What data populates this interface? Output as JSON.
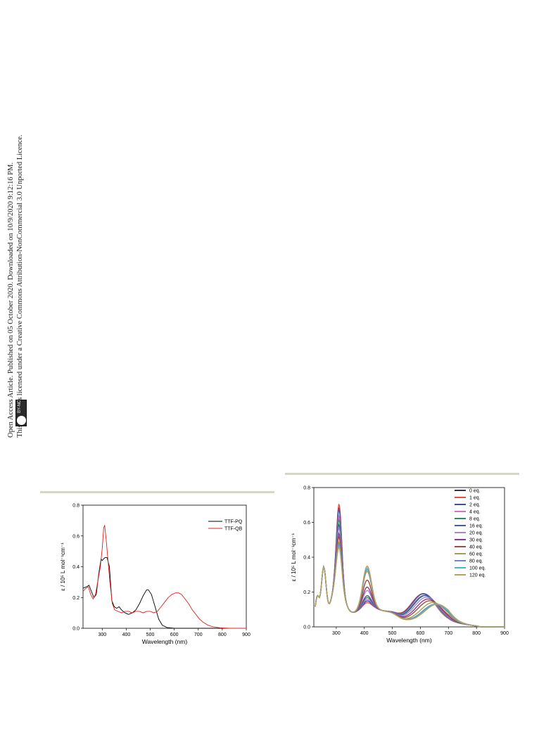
{
  "sidebar": {
    "line1": "Open Access Article. Published on 05 October 2020. Downloaded on 10/9/2020 9:12:16 PM.",
    "line2": "This article is licensed under a Creative Commons Attribution-NonCommercial 3.0 Unported Licence.",
    "badge_text": "BY-NC",
    "badge_icon": "cc-license-icon"
  },
  "colors": {
    "black": "#000000",
    "red": "#e02020",
    "rule": "#d6d6c8"
  },
  "chart_data": [
    {
      "type": "line",
      "xlabel": "Wavelength (nm)",
      "ylabel": "ε / 10⁵ L mol⁻¹cm⁻¹",
      "xlim": [
        220,
        900
      ],
      "ylim": [
        0.0,
        0.8
      ],
      "xticks": [
        300,
        400,
        500,
        600,
        700,
        800,
        900
      ],
      "yticks": [
        0.0,
        0.2,
        0.4,
        0.6,
        0.8
      ],
      "legend_position": "top-right",
      "series": [
        {
          "name": "TTF-PQ",
          "color": "#000000",
          "points": [
            [
              220,
              0.26
            ],
            [
              235,
              0.27
            ],
            [
              245,
              0.28
            ],
            [
              255,
              0.24
            ],
            [
              265,
              0.2
            ],
            [
              275,
              0.22
            ],
            [
              285,
              0.35
            ],
            [
              295,
              0.45
            ],
            [
              300,
              0.44
            ],
            [
              305,
              0.45
            ],
            [
              312,
              0.46
            ],
            [
              320,
              0.46
            ],
            [
              330,
              0.4
            ],
            [
              340,
              0.18
            ],
            [
              350,
              0.14
            ],
            [
              360,
              0.13
            ],
            [
              370,
              0.14
            ],
            [
              380,
              0.12
            ],
            [
              395,
              0.1
            ],
            [
              410,
              0.09
            ],
            [
              425,
              0.1
            ],
            [
              440,
              0.12
            ],
            [
              455,
              0.16
            ],
            [
              470,
              0.21
            ],
            [
              485,
              0.25
            ],
            [
              492,
              0.25
            ],
            [
              505,
              0.22
            ],
            [
              520,
              0.14
            ],
            [
              535,
              0.06
            ],
            [
              550,
              0.02
            ],
            [
              570,
              0.005
            ],
            [
              600,
              0.0
            ],
            [
              700,
              0.0
            ],
            [
              900,
              0.0
            ]
          ]
        },
        {
          "name": "TTF-QB",
          "color": "#e02020",
          "points": [
            [
              220,
              0.24
            ],
            [
              232,
              0.26
            ],
            [
              242,
              0.27
            ],
            [
              252,
              0.22
            ],
            [
              262,
              0.19
            ],
            [
              272,
              0.22
            ],
            [
              282,
              0.31
            ],
            [
              292,
              0.4
            ],
            [
              300,
              0.52
            ],
            [
              306,
              0.65
            ],
            [
              310,
              0.67
            ],
            [
              316,
              0.58
            ],
            [
              324,
              0.44
            ],
            [
              332,
              0.3
            ],
            [
              342,
              0.16
            ],
            [
              352,
              0.12
            ],
            [
              365,
              0.11
            ],
            [
              380,
              0.1
            ],
            [
              395,
              0.11
            ],
            [
              410,
              0.11
            ],
            [
              425,
              0.1
            ],
            [
              440,
              0.11
            ],
            [
              455,
              0.11
            ],
            [
              470,
              0.1
            ],
            [
              485,
              0.11
            ],
            [
              500,
              0.11
            ],
            [
              515,
              0.1
            ],
            [
              530,
              0.11
            ],
            [
              545,
              0.14
            ],
            [
              560,
              0.17
            ],
            [
              575,
              0.2
            ],
            [
              590,
              0.22
            ],
            [
              605,
              0.23
            ],
            [
              618,
              0.23
            ],
            [
              630,
              0.22
            ],
            [
              645,
              0.19
            ],
            [
              660,
              0.16
            ],
            [
              675,
              0.12
            ],
            [
              690,
              0.09
            ],
            [
              705,
              0.06
            ],
            [
              720,
              0.04
            ],
            [
              740,
              0.02
            ],
            [
              760,
              0.01
            ],
            [
              790,
              0.003
            ],
            [
              830,
              0.0
            ],
            [
              900,
              0.0
            ]
          ]
        }
      ]
    },
    {
      "type": "line",
      "xlabel": "Wavelength (nm)",
      "ylabel": "ε / 10⁵ L mol⁻¹cm⁻¹",
      "xlim": [
        220,
        900
      ],
      "ylim": [
        0.0,
        0.8
      ],
      "xticks": [
        300,
        400,
        500,
        600,
        700,
        800,
        900
      ],
      "yticks": [
        0.0,
        0.2,
        0.4,
        0.6,
        0.8
      ],
      "legend_position": "top-right",
      "series_names": [
        "0 eq.",
        "1 eq.",
        "2 eq.",
        "4 eq.",
        "8 eq.",
        "16 eq.",
        "20 eq.",
        "30 eq.",
        "40 eq.",
        "60 eq.",
        "80 eq.",
        "100 eq.",
        "120 eq."
      ],
      "series_colors": [
        "#33334d",
        "#e05050",
        "#3a4fa8",
        "#d070d0",
        "#2f8a60",
        "#4a5a9a",
        "#a08ad0",
        "#8a3c8a",
        "#a04c3a",
        "#a0a050",
        "#6f86c8",
        "#44b8d0",
        "#b8a060"
      ],
      "peak_310": [
        0.65,
        0.67,
        0.64,
        0.6,
        0.58,
        0.55,
        0.53,
        0.5,
        0.48,
        0.45,
        0.44,
        0.43,
        0.42
      ],
      "peak_410": [
        0.12,
        0.11,
        0.12,
        0.13,
        0.14,
        0.15,
        0.18,
        0.2,
        0.24,
        0.29,
        0.3,
        0.31,
        0.32
      ],
      "peak_band_center": [
        610,
        610,
        612,
        614,
        616,
        618,
        622,
        628,
        634,
        645,
        652,
        656,
        660
      ],
      "peak_band_height": [
        0.24,
        0.24,
        0.24,
        0.23,
        0.23,
        0.23,
        0.22,
        0.21,
        0.2,
        0.19,
        0.18,
        0.18,
        0.18
      ]
    }
  ]
}
